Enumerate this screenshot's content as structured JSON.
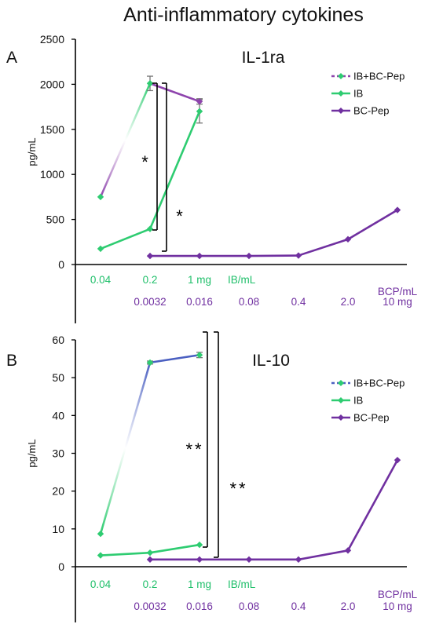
{
  "figure_title": "Anti-inflammatory cytokines",
  "colors": {
    "ib": "#2ecc71",
    "bcpep": "#7030a0",
    "combo_a": "#8e44ad",
    "combo_b": "#4a5fc1",
    "axis": "#000000",
    "errorbar": "#777777"
  },
  "chart_data": [
    {
      "type": "line",
      "panel_label": "A",
      "title": "IL-1ra",
      "ylabel": "pg/mL",
      "ylim": [
        0,
        2500
      ],
      "yticks": [
        0,
        500,
        1000,
        1500,
        2000,
        2500
      ],
      "x_row1": [
        "0.04",
        "0.2",
        "1 mg",
        "IB/mL"
      ],
      "x_row2": [
        "0.0032",
        "0.016",
        "0.08",
        "0.4",
        "2.0",
        "10 mg"
      ],
      "x_row2_unit": "BCP/mL",
      "legend": [
        "IB+BC-Pep",
        "IB",
        "BC-Pep"
      ],
      "series": [
        {
          "name": "IB+BC-Pep",
          "x": [
            0,
            1,
            2
          ],
          "values": [
            750,
            2010,
            1810
          ],
          "err": [
            0,
            80,
            30
          ]
        },
        {
          "name": "IB",
          "x": [
            0,
            1,
            2
          ],
          "values": [
            175,
            395,
            1700
          ],
          "err": [
            0,
            0,
            130
          ]
        },
        {
          "name": "BC-Pep",
          "x": [
            1,
            2,
            3,
            4,
            5,
            6
          ],
          "values": [
            95,
            95,
            95,
            100,
            280,
            605
          ],
          "err": [
            0,
            0,
            0,
            0,
            0,
            0
          ]
        }
      ],
      "significance": [
        "*",
        "*"
      ]
    },
    {
      "type": "line",
      "panel_label": "B",
      "title": "IL-10",
      "ylabel": "pg/mL",
      "ylim": [
        0,
        60
      ],
      "yticks": [
        0,
        10,
        20,
        30,
        40,
        50,
        60
      ],
      "x_row1": [
        "0.04",
        "0.2",
        "1 mg",
        "IB/mL"
      ],
      "x_row2": [
        "0.0032",
        "0.016",
        "0.08",
        "0.4",
        "2.0",
        "10 mg"
      ],
      "x_row2_unit": "BCP/mL",
      "legend": [
        "IB+BC-Pep",
        "IB",
        "BC-Pep"
      ],
      "series": [
        {
          "name": "IB+BC-Pep",
          "x": [
            0,
            1,
            2
          ],
          "values": [
            8.7,
            54,
            56
          ],
          "err": [
            0,
            0.4,
            0.7
          ]
        },
        {
          "name": "IB",
          "x": [
            0,
            1,
            2
          ],
          "values": [
            3.0,
            3.7,
            5.8
          ],
          "err": [
            0,
            0,
            0
          ]
        },
        {
          "name": "BC-Pep",
          "x": [
            1,
            2,
            3,
            4,
            5,
            6
          ],
          "values": [
            1.9,
            1.9,
            1.9,
            1.9,
            4.3,
            28.2
          ],
          "err": [
            0,
            0,
            0,
            0,
            0,
            0
          ]
        }
      ],
      "significance": [
        "**",
        "**"
      ]
    }
  ]
}
